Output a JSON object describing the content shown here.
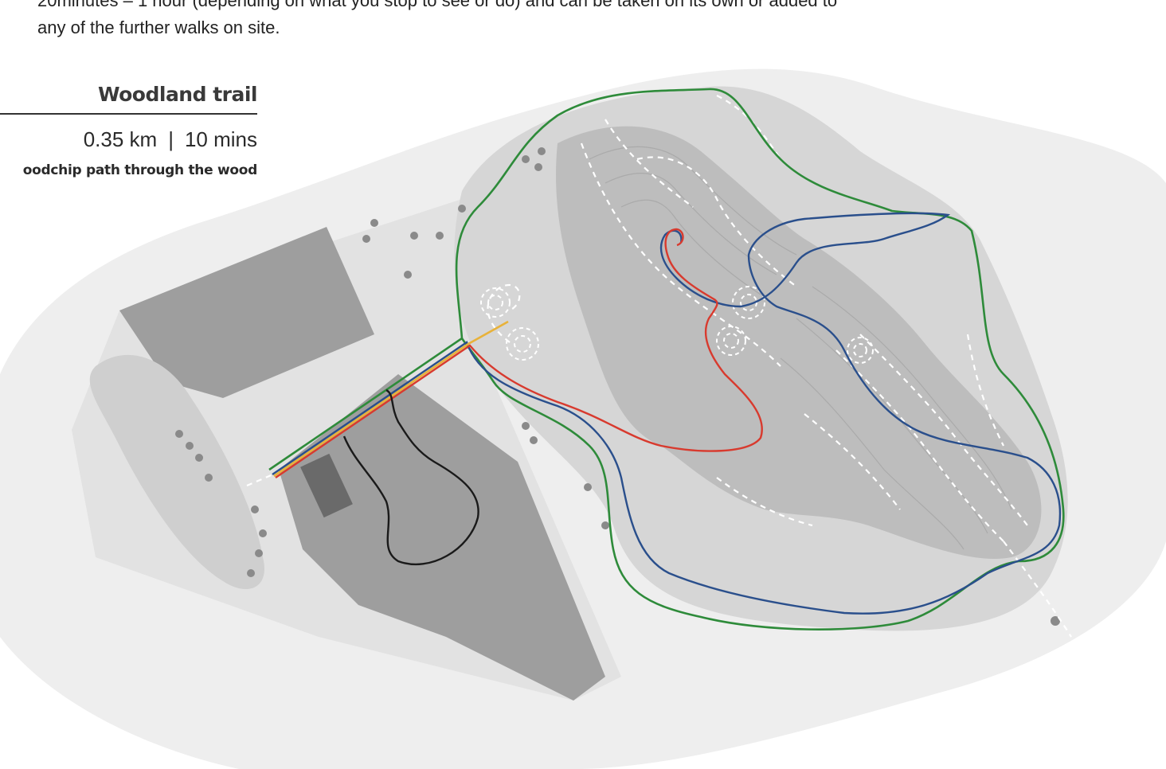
{
  "intro": {
    "line1": "20minutes – 1 hour (depending on what you stop to see or do) and can be taken on its own or added to",
    "line2": "any of the further walks on site."
  },
  "legend": {
    "title": "Woodland trail",
    "distance": "0.35 km",
    "separator": "|",
    "duration": "10 mins",
    "description": "oodchip path through the wood"
  },
  "colors": {
    "background": "#eeeeee",
    "land": "#dcdcdc",
    "woodland": "#9e9e9e",
    "landform": "#b8b8b8",
    "trail_green": "#2e8b3a",
    "trail_blue": "#2a4f8c",
    "trail_red": "#d83a2e",
    "trail_yellow": "#e8b23a",
    "trail_black": "#1a1a1a"
  }
}
